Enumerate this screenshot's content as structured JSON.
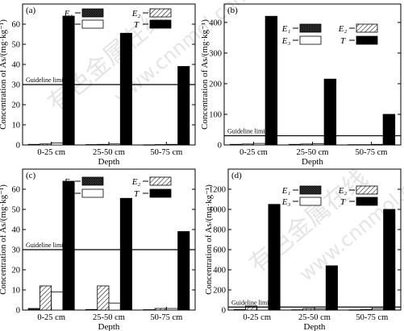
{
  "watermark": {
    "cn": "有色金属在线",
    "url": "www.cnnmol.com"
  },
  "chart_data": [
    {
      "type": "bar",
      "panel_label": "(a)",
      "categories": [
        "0-25 cm",
        "25-50 cm",
        "50-75 cm"
      ],
      "xlabel": "Depth",
      "ylabel": "Concentration of As/(mg·kg⁻¹)",
      "ylim": [
        0,
        70
      ],
      "yticks": [
        0,
        10,
        20,
        30,
        40,
        50,
        60
      ],
      "guideline": {
        "label": "Guideline limit",
        "value": 30
      },
      "series": [
        {
          "name": "E₁",
          "pattern": "cross",
          "values": [
            0.3,
            0.2,
            0.1
          ]
        },
        {
          "name": "E₂",
          "pattern": "diag",
          "values": [
            0.5,
            0.3,
            0.2
          ]
        },
        {
          "name": "E₃",
          "pattern": "white",
          "values": [
            1.0,
            0.5,
            0.3
          ]
        },
        {
          "name": "T",
          "pattern": "black",
          "values": [
            64,
            55.5,
            39
          ]
        }
      ],
      "legend": "top"
    },
    {
      "type": "bar",
      "panel_label": "(b)",
      "categories": [
        "0-25 cm",
        "25-50 cm",
        "50-75 cm"
      ],
      "xlabel": "Depth",
      "ylabel": "Concentration of As/(mg·kg⁻¹)",
      "ylim": [
        0,
        460
      ],
      "yticks": [
        0,
        100,
        200,
        300,
        400
      ],
      "guideline": {
        "label": "Guideline limit",
        "value": 30
      },
      "series": [
        {
          "name": "E₁",
          "pattern": "cross",
          "values": [
            2,
            2,
            1
          ]
        },
        {
          "name": "E₂",
          "pattern": "diag",
          "values": [
            3,
            3,
            1
          ]
        },
        {
          "name": "E₃",
          "pattern": "white",
          "values": [
            5,
            4,
            2
          ]
        },
        {
          "name": "T",
          "pattern": "black",
          "values": [
            420,
            215,
            100
          ]
        }
      ],
      "legend": "top-right"
    },
    {
      "type": "bar",
      "panel_label": "(c)",
      "categories": [
        "0-25 cm",
        "25-50 cm",
        "50-75 cm"
      ],
      "xlabel": "Depth",
      "ylabel": "Concentration of As/(mg·kg⁻¹)",
      "ylim": [
        0,
        70
      ],
      "yticks": [
        0,
        10,
        20,
        30,
        40,
        50,
        60
      ],
      "guideline": {
        "label": "Guideline limit",
        "value": 30
      },
      "series": [
        {
          "name": "E₁",
          "pattern": "cross",
          "values": [
            0.8,
            0.3,
            0.2
          ]
        },
        {
          "name": "E₂",
          "pattern": "diag",
          "values": [
            12,
            12,
            0.8
          ]
        },
        {
          "name": "E₃",
          "pattern": "white",
          "values": [
            9,
            3.5,
            0.8
          ]
        },
        {
          "name": "T",
          "pattern": "black",
          "values": [
            64,
            55.5,
            39
          ]
        }
      ],
      "legend": "top"
    },
    {
      "type": "bar",
      "panel_label": "(d)",
      "categories": [
        "0-25 cm",
        "25-50 cm",
        "50-75 cm"
      ],
      "xlabel": "Depth",
      "ylabel": "Concentration of As/(mg·kg⁻¹)",
      "ylim": [
        0,
        1400
      ],
      "yticks": [
        0,
        200,
        400,
        600,
        800,
        1000,
        1200
      ],
      "guideline": {
        "label": "Guideline limit",
        "value": 30
      },
      "series": [
        {
          "name": "E₁",
          "pattern": "cross",
          "values": [
            5,
            3,
            2
          ]
        },
        {
          "name": "E₂",
          "pattern": "diag",
          "values": [
            40,
            15,
            5
          ]
        },
        {
          "name": "E₃",
          "pattern": "white",
          "values": [
            30,
            12,
            15
          ]
        },
        {
          "name": "T",
          "pattern": "black",
          "values": [
            1050,
            440,
            1000
          ]
        }
      ],
      "legend": "top-right"
    }
  ]
}
